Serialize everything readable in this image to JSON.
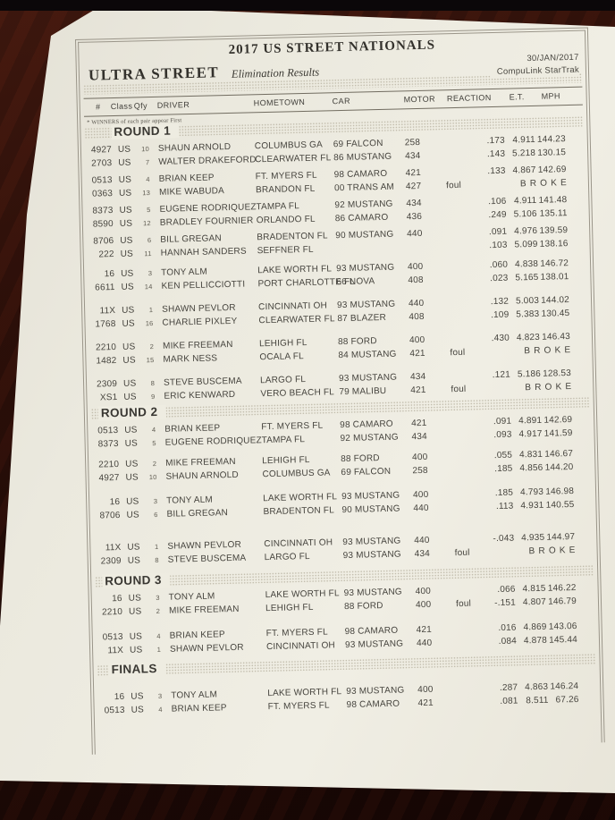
{
  "page": {
    "title": "2017 US STREET NATIONALS",
    "class_title": "ULTRA STREET",
    "subtitle": "Elimination Results",
    "date": "30/JAN/2017",
    "timing_system": "CompuLink StarTrak",
    "note": "* WINNERS of each pair appear First"
  },
  "labels": {
    "broke": "BROKE"
  },
  "columns": [
    "#",
    "Class",
    "Qfy",
    "DRIVER",
    "HOMETOWN",
    "CAR",
    "MOTOR",
    "REACTION",
    "E.T.",
    "MPH"
  ],
  "rounds": [
    {
      "name": "ROUND 1",
      "pairs": [
        [
          {
            "num": "4927",
            "cls": "US",
            "qfy": "10",
            "driver": "SHAUN ARNOLD",
            "hometown": "COLUMBUS GA",
            "car": "69 FALCON",
            "motor": "258",
            "foul": "",
            "reaction": ".173",
            "et": "4.911",
            "mph": "144.23",
            "broke": false
          },
          {
            "num": "2703",
            "cls": "US",
            "qfy": "7",
            "driver": "WALTER DRAKEFORD",
            "hometown": "CLEARWATER FL",
            "car": "86 MUSTANG",
            "motor": "434",
            "foul": "",
            "reaction": ".143",
            "et": "5.218",
            "mph": "130.15",
            "broke": false
          }
        ],
        [
          {
            "num": "0513",
            "cls": "US",
            "qfy": "4",
            "driver": "BRIAN KEEP",
            "hometown": "FT. MYERS FL",
            "car": "98 CAMARO",
            "motor": "421",
            "foul": "",
            "reaction": ".133",
            "et": "4.867",
            "mph": "142.69",
            "broke": false
          },
          {
            "num": "0363",
            "cls": "US",
            "qfy": "13",
            "driver": "MIKE WABUDA",
            "hometown": "BRANDON FL",
            "car": "00 TRANS AM",
            "motor": "427",
            "foul": "foul",
            "reaction": "",
            "et": "",
            "mph": "",
            "broke": true
          }
        ],
        [
          {
            "num": "8373",
            "cls": "US",
            "qfy": "5",
            "driver": "EUGENE RODRIQUEZ",
            "hometown": "TAMPA FL",
            "car": "92 MUSTANG",
            "motor": "434",
            "foul": "",
            "reaction": ".106",
            "et": "4.911",
            "mph": "141.48",
            "broke": false
          },
          {
            "num": "8590",
            "cls": "US",
            "qfy": "12",
            "driver": "BRADLEY FOURNIER",
            "hometown": "ORLANDO FL",
            "car": "86 CAMARO",
            "motor": "436",
            "foul": "",
            "reaction": ".249",
            "et": "5.106",
            "mph": "135.11",
            "broke": false
          }
        ],
        [
          {
            "num": "8706",
            "cls": "US",
            "qfy": "6",
            "driver": "BILL GREGAN",
            "hometown": "BRADENTON FL",
            "car": "90 MUSTANG",
            "motor": "440",
            "foul": "",
            "reaction": ".091",
            "et": "4.976",
            "mph": "139.59",
            "broke": false
          },
          {
            "num": "222",
            "cls": "US",
            "qfy": "11",
            "driver": "HANNAH SANDERS",
            "hometown": "SEFFNER FL",
            "car": "",
            "motor": "",
            "foul": "",
            "reaction": ".103",
            "et": "5.099",
            "mph": "138.16",
            "broke": false
          }
        ],
        [
          {
            "num": "16",
            "cls": "US",
            "qfy": "3",
            "driver": "TONY ALM",
            "hometown": "LAKE WORTH FL",
            "car": "93 MUSTANG",
            "motor": "400",
            "foul": "",
            "reaction": ".060",
            "et": "4.838",
            "mph": "146.72",
            "broke": false
          },
          {
            "num": "6611",
            "cls": "US",
            "qfy": "14",
            "driver": "KEN PELLICCIOTTI",
            "hometown": "PORT CHARLOTTE FL",
            "car": "66 NOVA",
            "motor": "408",
            "foul": "",
            "reaction": ".023",
            "et": "5.165",
            "mph": "138.01",
            "broke": false
          }
        ],
        [
          {
            "num": "11X",
            "cls": "US",
            "qfy": "1",
            "driver": "SHAWN PEVLOR",
            "hometown": "CINCINNATI OH",
            "car": "93 MUSTANG",
            "motor": "440",
            "foul": "",
            "reaction": ".132",
            "et": "5.003",
            "mph": "144.02",
            "broke": false
          },
          {
            "num": "1768",
            "cls": "US",
            "qfy": "16",
            "driver": "CHARLIE PIXLEY",
            "hometown": "CLEARWATER FL",
            "car": "87 BLAZER",
            "motor": "408",
            "foul": "",
            "reaction": ".109",
            "et": "5.383",
            "mph": "130.45",
            "broke": false
          }
        ],
        [
          {
            "num": "2210",
            "cls": "US",
            "qfy": "2",
            "driver": "MIKE FREEMAN",
            "hometown": "LEHIGH FL",
            "car": "88 FORD",
            "motor": "400",
            "foul": "",
            "reaction": ".430",
            "et": "4.823",
            "mph": "146.43",
            "broke": false
          },
          {
            "num": "1482",
            "cls": "US",
            "qfy": "15",
            "driver": "MARK NESS",
            "hometown": "OCALA FL",
            "car": "84 MUSTANG",
            "motor": "421",
            "foul": "foul",
            "reaction": "",
            "et": "",
            "mph": "",
            "broke": true
          }
        ],
        [
          {
            "num": "2309",
            "cls": "US",
            "qfy": "8",
            "driver": "STEVE BUSCEMA",
            "hometown": "LARGO FL",
            "car": "93 MUSTANG",
            "motor": "434",
            "foul": "",
            "reaction": ".121",
            "et": "5.186",
            "mph": "128.53",
            "broke": false
          },
          {
            "num": "XS1",
            "cls": "US",
            "qfy": "9",
            "driver": "ERIC KENWARD",
            "hometown": "VERO BEACH FL",
            "car": "79 MALIBU",
            "motor": "421",
            "foul": "foul",
            "reaction": "",
            "et": "",
            "mph": "",
            "broke": true
          }
        ]
      ]
    },
    {
      "name": "ROUND 2",
      "pairs": [
        [
          {
            "num": "0513",
            "cls": "US",
            "qfy": "4",
            "driver": "BRIAN KEEP",
            "hometown": "FT. MYERS FL",
            "car": "98 CAMARO",
            "motor": "421",
            "foul": "",
            "reaction": ".091",
            "et": "4.891",
            "mph": "142.69",
            "broke": false
          },
          {
            "num": "8373",
            "cls": "US",
            "qfy": "5",
            "driver": "EUGENE RODRIQUEZ",
            "hometown": "TAMPA FL",
            "car": "92 MUSTANG",
            "motor": "434",
            "foul": "",
            "reaction": ".093",
            "et": "4.917",
            "mph": "141.59",
            "broke": false
          }
        ],
        [
          {
            "num": "2210",
            "cls": "US",
            "qfy": "2",
            "driver": "MIKE FREEMAN",
            "hometown": "LEHIGH FL",
            "car": "88 FORD",
            "motor": "400",
            "foul": "",
            "reaction": ".055",
            "et": "4.831",
            "mph": "146.67",
            "broke": false
          },
          {
            "num": "4927",
            "cls": "US",
            "qfy": "10",
            "driver": "SHAUN ARNOLD",
            "hometown": "COLUMBUS GA",
            "car": "69 FALCON",
            "motor": "258",
            "foul": "",
            "reaction": ".185",
            "et": "4.856",
            "mph": "144.20",
            "broke": false
          }
        ],
        [
          {
            "num": "16",
            "cls": "US",
            "qfy": "3",
            "driver": "TONY ALM",
            "hometown": "LAKE WORTH FL",
            "car": "93 MUSTANG",
            "motor": "400",
            "foul": "",
            "reaction": ".185",
            "et": "4.793",
            "mph": "146.98",
            "broke": false
          },
          {
            "num": "8706",
            "cls": "US",
            "qfy": "6",
            "driver": "BILL GREGAN",
            "hometown": "BRADENTON FL",
            "car": "90 MUSTANG",
            "motor": "440",
            "foul": "",
            "reaction": ".113",
            "et": "4.931",
            "mph": "140.55",
            "broke": false
          }
        ],
        [
          {
            "num": "11X",
            "cls": "US",
            "qfy": "1",
            "driver": "SHAWN PEVLOR",
            "hometown": "CINCINNATI OH",
            "car": "93 MUSTANG",
            "motor": "440",
            "foul": "",
            "reaction": "-.043",
            "et": "4.935",
            "mph": "144.97",
            "broke": false
          },
          {
            "num": "2309",
            "cls": "US",
            "qfy": "8",
            "driver": "STEVE BUSCEMA",
            "hometown": "LARGO FL",
            "car": "93 MUSTANG",
            "motor": "434",
            "foul": "foul",
            "reaction": "",
            "et": "",
            "mph": "",
            "broke": true
          }
        ]
      ]
    },
    {
      "name": "ROUND 3",
      "pairs": [
        [
          {
            "num": "16",
            "cls": "US",
            "qfy": "3",
            "driver": "TONY ALM",
            "hometown": "LAKE WORTH FL",
            "car": "93 MUSTANG",
            "motor": "400",
            "foul": "",
            "reaction": ".066",
            "et": "4.815",
            "mph": "146.22",
            "broke": false
          },
          {
            "num": "2210",
            "cls": "US",
            "qfy": "2",
            "driver": "MIKE FREEMAN",
            "hometown": "LEHIGH FL",
            "car": "88 FORD",
            "motor": "400",
            "foul": "foul",
            "reaction": "-.151",
            "et": "4.807",
            "mph": "146.79",
            "broke": false
          }
        ],
        [
          {
            "num": "0513",
            "cls": "US",
            "qfy": "4",
            "driver": "BRIAN KEEP",
            "hometown": "FT. MYERS FL",
            "car": "98 CAMARO",
            "motor": "421",
            "foul": "",
            "reaction": ".016",
            "et": "4.869",
            "mph": "143.06",
            "broke": false
          },
          {
            "num": "11X",
            "cls": "US",
            "qfy": "1",
            "driver": "SHAWN PEVLOR",
            "hometown": "CINCINNATI OH",
            "car": "93 MUSTANG",
            "motor": "440",
            "foul": "",
            "reaction": ".084",
            "et": "4.878",
            "mph": "145.44",
            "broke": false
          }
        ]
      ]
    },
    {
      "name": "FINALS",
      "pairs": [
        [
          {
            "num": "16",
            "cls": "US",
            "qfy": "3",
            "driver": "TONY ALM",
            "hometown": "LAKE WORTH FL",
            "car": "93 MUSTANG",
            "motor": "400",
            "foul": "",
            "reaction": ".287",
            "et": "4.863",
            "mph": "146.24",
            "broke": false
          },
          {
            "num": "0513",
            "cls": "US",
            "qfy": "4",
            "driver": "BRIAN KEEP",
            "hometown": "FT. MYERS FL",
            "car": "98 CAMARO",
            "motor": "421",
            "foul": "",
            "reaction": ".081",
            "et": "8.511",
            "mph": "67.26",
            "broke": false
          }
        ]
      ]
    }
  ]
}
